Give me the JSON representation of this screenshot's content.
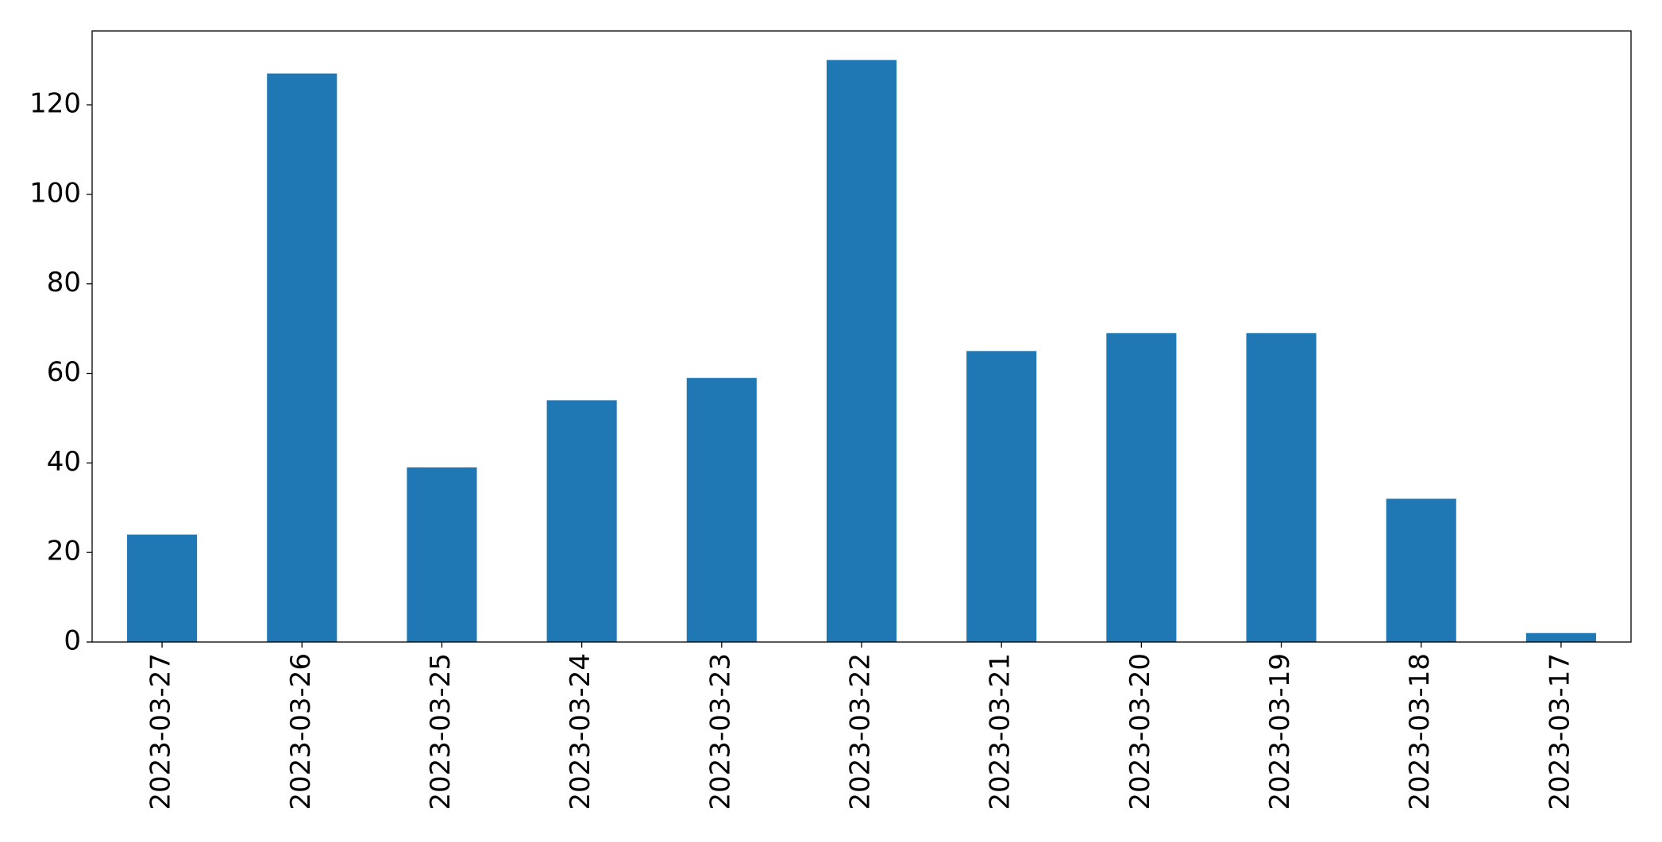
{
  "chart_data": {
    "type": "bar",
    "categories": [
      "2023-03-27",
      "2023-03-26",
      "2023-03-25",
      "2023-03-24",
      "2023-03-23",
      "2023-03-22",
      "2023-03-21",
      "2023-03-20",
      "2023-03-19",
      "2023-03-18",
      "2023-03-17"
    ],
    "values": [
      24,
      127,
      39,
      54,
      59,
      130,
      65,
      69,
      69,
      32,
      2
    ],
    "color": "#1f77b4",
    "ylim": [
      0,
      136.5
    ],
    "yticks": [
      0,
      20,
      40,
      60,
      80,
      100,
      120
    ],
    "grid": false
  }
}
